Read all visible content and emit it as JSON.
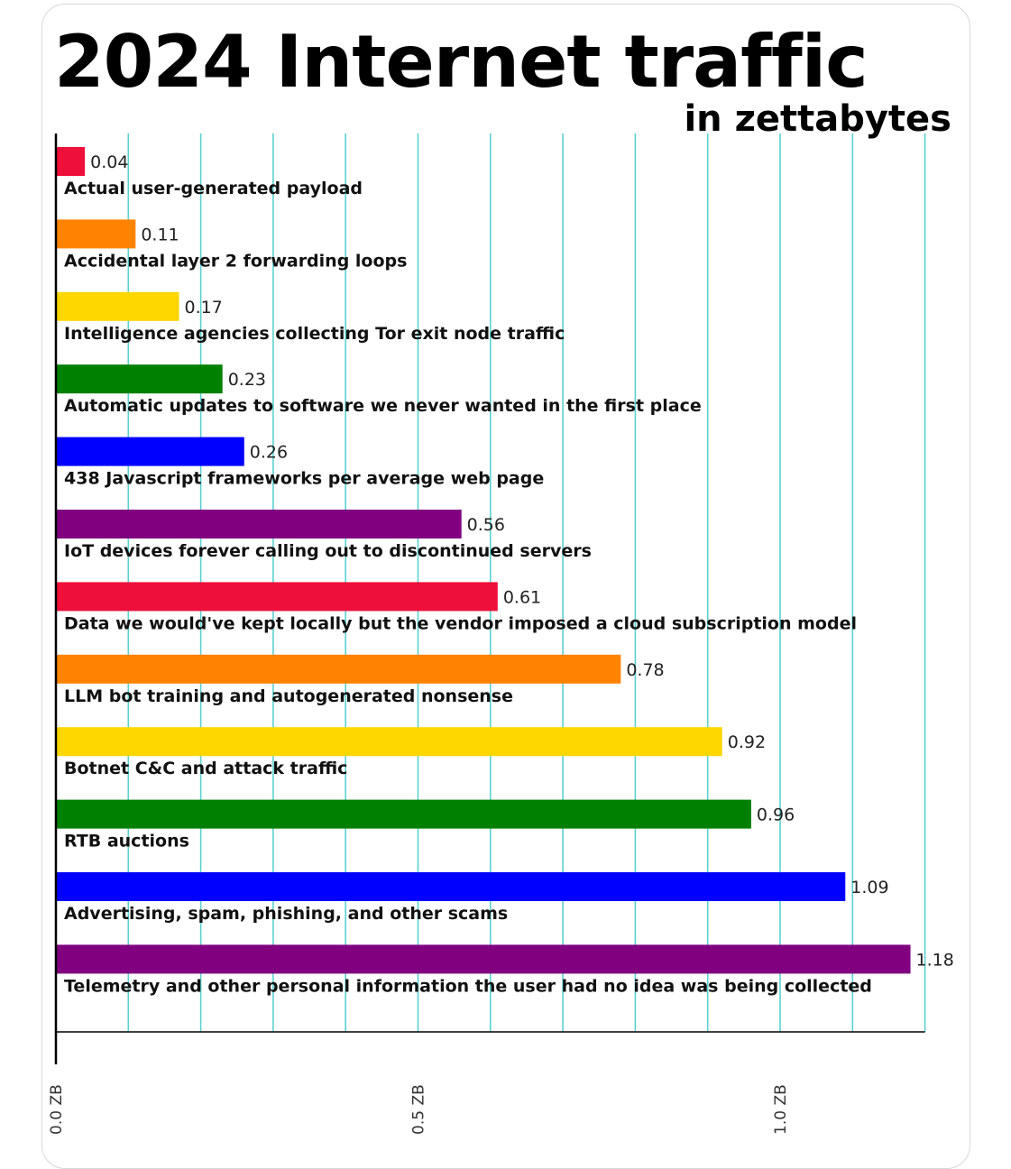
{
  "header": {
    "title": "2024 Internet traffic",
    "subtitle": "in zettabytes"
  },
  "chart_data": {
    "type": "bar",
    "orientation": "horizontal",
    "title": "2024 Internet traffic",
    "subtitle": "in zettabytes",
    "xlim": [
      0,
      1.2
    ],
    "grid": true,
    "grid_color": "#5ad1d1",
    "x_ticks": [
      {
        "value": 0.0,
        "label": "0.0 ZB"
      },
      {
        "value": 0.5,
        "label": "0.5 ZB"
      },
      {
        "value": 1.0,
        "label": "1.0 ZB"
      }
    ],
    "categories": [
      "Actual user-generated payload",
      "Accidental layer 2 forwarding loops",
      "Intelligence agencies collecting Tor exit node traffic",
      "Automatic updates to software we never wanted in the first place",
      "438 Javascript frameworks per average web page",
      "IoT devices forever calling out to discontinued servers",
      "Data we would've kept locally but the vendor imposed a cloud subscription model",
      "LLM bot training and autogenerated nonsense",
      "Botnet C&C and attack traffic",
      "RTB auctions",
      "Advertising, spam, phishing, and other scams",
      "Telemetry and other personal information the user had no idea was being collected"
    ],
    "values": [
      0.04,
      0.11,
      0.17,
      0.23,
      0.26,
      0.56,
      0.61,
      0.78,
      0.92,
      0.96,
      1.09,
      1.18
    ],
    "value_labels": [
      "0.04",
      "0.11",
      "0.17",
      "0.23",
      "0.26",
      "0.56",
      "0.61",
      "0.78",
      "0.92",
      "0.96",
      "1.09",
      "1.18"
    ],
    "colors": [
      "#ee0f3a",
      "#ff8200",
      "#ffd700",
      "#008000",
      "#0000ff",
      "#800080",
      "#ee0f3a",
      "#ff8200",
      "#ffd700",
      "#008000",
      "#0000ff",
      "#800080"
    ]
  }
}
